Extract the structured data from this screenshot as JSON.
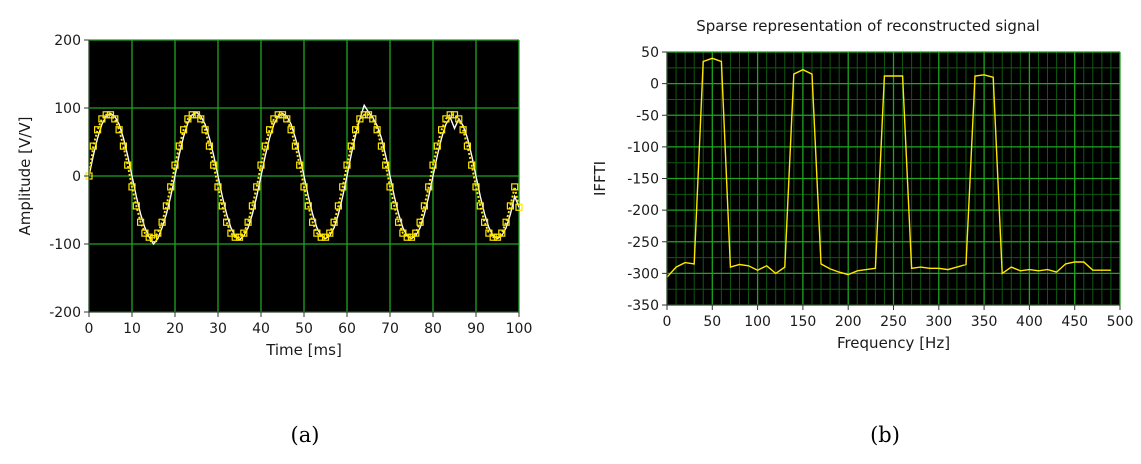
{
  "chart_data": [
    {
      "type": "line",
      "panel_label": "(a)",
      "title": "",
      "xlabel": "Time [ms]",
      "ylabel": "Amplitude [V/V]",
      "xlim": [
        0,
        100
      ],
      "ylim": [
        -200,
        200
      ],
      "x_ticks": [
        0,
        10,
        20,
        30,
        40,
        50,
        60,
        70,
        80,
        90,
        100
      ],
      "y_ticks": [
        200,
        100,
        0,
        -100,
        -200
      ],
      "background": "#000000",
      "grid_color": "#1fa51f",
      "grid": true,
      "series": [
        {
          "line_color": "#ffffff",
          "style": "line",
          "x": [
            0,
            1,
            2,
            3,
            4,
            5,
            6,
            7,
            8,
            9,
            10,
            11,
            12,
            13,
            14,
            15,
            16,
            17,
            18,
            19,
            20,
            21,
            22,
            23,
            24,
            25,
            26,
            27,
            28,
            29,
            30,
            31,
            32,
            33,
            34,
            35,
            36,
            37,
            38,
            39,
            40,
            41,
            42,
            43,
            44,
            45,
            46,
            47,
            48,
            49,
            50,
            51,
            52,
            53,
            54,
            55,
            56,
            57,
            58,
            59,
            60,
            61,
            62,
            63,
            64,
            65,
            66,
            67,
            68,
            69,
            70,
            71,
            72,
            73,
            74,
            75,
            76,
            77,
            78,
            79,
            80,
            81,
            82,
            83,
            84,
            85,
            86,
            87,
            88,
            89,
            90,
            91,
            92,
            93,
            94,
            95,
            96,
            97,
            98,
            99,
            100
          ],
          "y": [
            0,
            30,
            56,
            76,
            88,
            92,
            88,
            76,
            56,
            30,
            0,
            -30,
            -56,
            -76,
            -90,
            -100,
            -92,
            -76,
            -56,
            -30,
            0,
            32,
            58,
            78,
            90,
            94,
            88,
            76,
            56,
            30,
            0,
            -30,
            -56,
            -76,
            -88,
            -94,
            -88,
            -76,
            -56,
            -30,
            0,
            30,
            56,
            76,
            88,
            92,
            88,
            76,
            56,
            30,
            0,
            -30,
            -56,
            -76,
            -88,
            -92,
            -88,
            -76,
            -56,
            -30,
            0,
            32,
            60,
            84,
            104,
            94,
            86,
            74,
            56,
            30,
            0,
            -30,
            -56,
            -76,
            -88,
            -92,
            -88,
            -76,
            -56,
            -30,
            0,
            30,
            56,
            76,
            86,
            70,
            84,
            74,
            56,
            30,
            0,
            -30,
            -56,
            -76,
            -88,
            -92,
            -88,
            -76,
            -56,
            -30,
            -46
          ]
        },
        {
          "line_color": "#ffe600",
          "style": "dotted-squares",
          "x": [
            0,
            1,
            2,
            3,
            4,
            5,
            6,
            7,
            8,
            9,
            10,
            11,
            12,
            13,
            14,
            15,
            16,
            17,
            18,
            19,
            20,
            21,
            22,
            23,
            24,
            25,
            26,
            27,
            28,
            29,
            30,
            31,
            32,
            33,
            34,
            35,
            36,
            37,
            38,
            39,
            40,
            41,
            42,
            43,
            44,
            45,
            46,
            47,
            48,
            49,
            50,
            51,
            52,
            53,
            54,
            55,
            56,
            57,
            58,
            59,
            60,
            61,
            62,
            63,
            64,
            65,
            66,
            67,
            68,
            69,
            70,
            71,
            72,
            73,
            74,
            75,
            76,
            77,
            78,
            79,
            80,
            81,
            82,
            83,
            84,
            85,
            86,
            87,
            88,
            89,
            90,
            91,
            92,
            93,
            94,
            95,
            96,
            97,
            98,
            99,
            100
          ],
          "y": [
            0,
            44,
            68,
            84,
            90,
            90,
            84,
            68,
            44,
            16,
            -16,
            -44,
            -68,
            -84,
            -90,
            -92,
            -84,
            -68,
            -44,
            -16,
            16,
            44,
            68,
            84,
            90,
            90,
            84,
            68,
            44,
            16,
            -16,
            -44,
            -68,
            -84,
            -90,
            -90,
            -84,
            -68,
            -44,
            -16,
            16,
            44,
            68,
            84,
            90,
            90,
            84,
            68,
            44,
            16,
            -16,
            -44,
            -68,
            -84,
            -90,
            -90,
            -84,
            -68,
            -44,
            -16,
            16,
            44,
            68,
            84,
            90,
            90,
            84,
            68,
            44,
            16,
            -16,
            -44,
            -68,
            -84,
            -90,
            -90,
            -84,
            -68,
            -44,
            -16,
            16,
            44,
            68,
            84,
            90,
            90,
            84,
            68,
            44,
            16,
            -16,
            -44,
            -68,
            -84,
            -90,
            -90,
            -84,
            -68,
            -44,
            -16,
            -46
          ]
        }
      ]
    },
    {
      "type": "line",
      "panel_label": "(b)",
      "title": "Sparse representation of reconstructed signal",
      "xlabel": "Frequency [Hz]",
      "ylabel": "IFFTI",
      "xlim": [
        0,
        500
      ],
      "ylim": [
        -350,
        50
      ],
      "x_ticks": [
        0,
        50,
        100,
        150,
        200,
        250,
        300,
        350,
        400,
        450,
        500
      ],
      "y_ticks": [
        50,
        0,
        -50,
        -100,
        -150,
        -200,
        -250,
        -300,
        -350
      ],
      "background": "#000000",
      "grid_color": "#1fa51f",
      "grid": true,
      "series": [
        {
          "line_color": "#ffe600",
          "style": "line",
          "x": [
            0,
            10,
            20,
            30,
            40,
            50,
            60,
            70,
            80,
            90,
            100,
            110,
            120,
            130,
            140,
            150,
            160,
            170,
            180,
            190,
            200,
            210,
            220,
            230,
            240,
            250,
            260,
            270,
            280,
            290,
            300,
            310,
            320,
            330,
            340,
            350,
            360,
            370,
            380,
            390,
            400,
            410,
            420,
            430,
            440,
            450,
            460,
            470,
            480,
            490
          ],
          "y": [
            -306,
            -290,
            -283,
            -285,
            35,
            40,
            35,
            -290,
            -286,
            -288,
            -295,
            -288,
            -300,
            -290,
            15,
            22,
            15,
            -285,
            -293,
            -298,
            -302,
            -296,
            -294,
            -292,
            12,
            12,
            12,
            -292,
            -290,
            -292,
            -292,
            -294,
            -290,
            -286,
            12,
            14,
            10,
            -300,
            -290,
            -296,
            -294,
            -296,
            -294,
            -298,
            -285,
            -282,
            -282,
            -295,
            -295,
            -295
          ]
        }
      ]
    }
  ]
}
